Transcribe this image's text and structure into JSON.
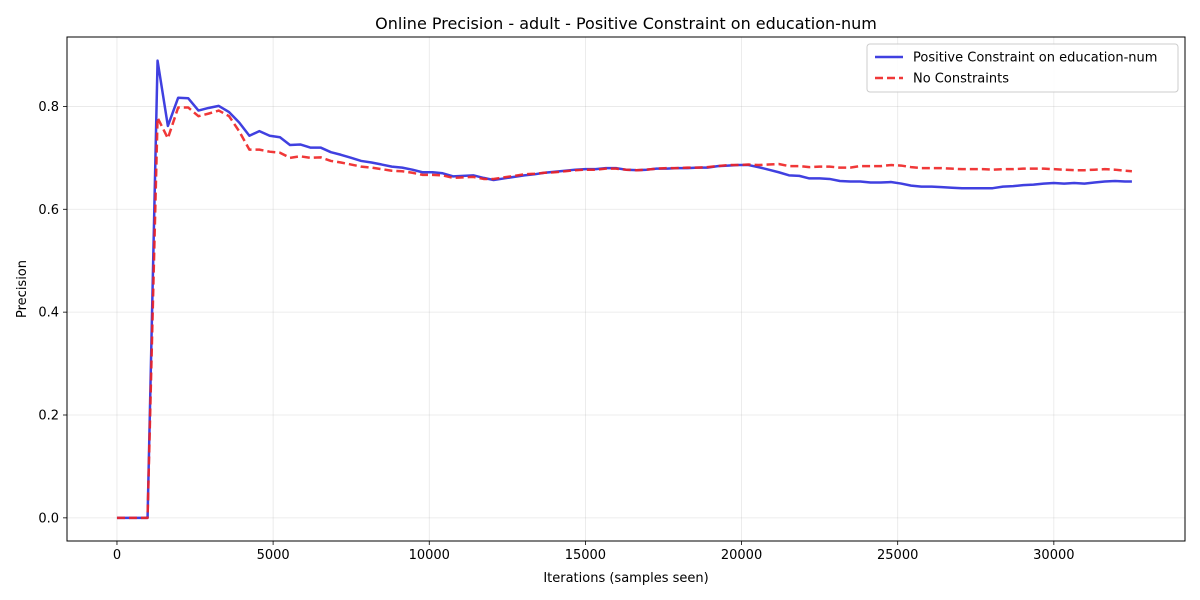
{
  "chart_data": {
    "type": "line",
    "title": "Online Precision - adult - Positive Constraint on education-num",
    "xlabel": "Iterations (samples seen)",
    "ylabel": "Precision",
    "xlim": [
      -1600,
      34200
    ],
    "ylim": [
      -0.045,
      0.935
    ],
    "xticks": [
      0,
      5000,
      10000,
      15000,
      20000,
      25000,
      30000
    ],
    "yticks": [
      0.0,
      0.2,
      0.4,
      0.6,
      0.8
    ],
    "xtick_labels": [
      "0",
      "5000",
      "10000",
      "15000",
      "20000",
      "25000",
      "30000"
    ],
    "ytick_labels": [
      "0.0",
      "0.2",
      "0.4",
      "0.6",
      "0.8"
    ],
    "grid": true,
    "legend_position": "top-right",
    "series": [
      {
        "name": "Positive Constraint on education-num",
        "color": "#2b2bdd",
        "style": "solid",
        "x": [
          0,
          330,
          650,
          980,
          1300,
          1630,
          1960,
          2280,
          2610,
          2930,
          3260,
          3590,
          3910,
          4240,
          4560,
          4890,
          5220,
          5540,
          5870,
          6190,
          6520,
          6850,
          7170,
          7500,
          7820,
          8150,
          8480,
          8800,
          9130,
          9460,
          9780,
          10110,
          10430,
          10760,
          11090,
          11410,
          11740,
          12060,
          12390,
          12720,
          13040,
          13370,
          13690,
          14020,
          14350,
          14670,
          15000,
          15330,
          15650,
          15980,
          16300,
          16630,
          16960,
          17280,
          17610,
          17930,
          18260,
          18590,
          18910,
          19240,
          19560,
          19890,
          20220,
          20540,
          20870,
          21190,
          21520,
          21850,
          22170,
          22500,
          22820,
          23150,
          23480,
          23800,
          24130,
          24460,
          24780,
          25110,
          25430,
          25760,
          26090,
          26410,
          26740,
          27060,
          27390,
          27720,
          28040,
          28370,
          28700,
          29020,
          29350,
          29670,
          30000,
          30330,
          30650,
          30980,
          31300,
          31630,
          31960,
          32280,
          32500
        ],
        "y": [
          0.0,
          0.0,
          0.0,
          0.0,
          0.889,
          0.762,
          0.817,
          0.816,
          0.792,
          0.797,
          0.801,
          0.789,
          0.769,
          0.743,
          0.752,
          0.743,
          0.74,
          0.725,
          0.726,
          0.72,
          0.72,
          0.711,
          0.706,
          0.7,
          0.694,
          0.691,
          0.687,
          0.683,
          0.681,
          0.677,
          0.672,
          0.672,
          0.67,
          0.664,
          0.665,
          0.666,
          0.661,
          0.657,
          0.66,
          0.663,
          0.666,
          0.668,
          0.671,
          0.673,
          0.675,
          0.677,
          0.678,
          0.678,
          0.68,
          0.68,
          0.677,
          0.676,
          0.677,
          0.679,
          0.679,
          0.68,
          0.68,
          0.681,
          0.681,
          0.684,
          0.685,
          0.686,
          0.686,
          0.682,
          0.677,
          0.672,
          0.666,
          0.665,
          0.66,
          0.66,
          0.659,
          0.655,
          0.654,
          0.654,
          0.652,
          0.652,
          0.653,
          0.65,
          0.646,
          0.644,
          0.644,
          0.643,
          0.642,
          0.641,
          0.641,
          0.641,
          0.641,
          0.644,
          0.645,
          0.647,
          0.648,
          0.65,
          0.651,
          0.65,
          0.651,
          0.65,
          0.652,
          0.654,
          0.655,
          0.654,
          0.654
        ]
      },
      {
        "name": "No Constraints",
        "color": "#ee2222",
        "style": "dashed",
        "x": [
          0,
          330,
          650,
          980,
          1300,
          1630,
          1960,
          2280,
          2610,
          2930,
          3260,
          3590,
          3910,
          4240,
          4560,
          4890,
          5220,
          5540,
          5870,
          6190,
          6520,
          6850,
          7170,
          7500,
          7820,
          8150,
          8480,
          8800,
          9130,
          9460,
          9780,
          10110,
          10430,
          10760,
          11090,
          11410,
          11740,
          12060,
          12390,
          12720,
          13040,
          13370,
          13690,
          14020,
          14350,
          14670,
          15000,
          15330,
          15650,
          15980,
          16300,
          16630,
          16960,
          17280,
          17610,
          17930,
          18260,
          18590,
          18910,
          19240,
          19560,
          19890,
          20220,
          20540,
          20870,
          21190,
          21520,
          21850,
          22170,
          22500,
          22820,
          23150,
          23480,
          23800,
          24130,
          24460,
          24780,
          25110,
          25430,
          25760,
          26090,
          26410,
          26740,
          27060,
          27390,
          27720,
          28040,
          28370,
          28700,
          29020,
          29350,
          29670,
          30000,
          30330,
          30650,
          30980,
          31300,
          31630,
          31960,
          32280,
          32500
        ],
        "y": [
          0.0,
          0.0,
          0.0,
          0.0,
          0.778,
          0.738,
          0.798,
          0.798,
          0.781,
          0.786,
          0.792,
          0.781,
          0.752,
          0.716,
          0.716,
          0.712,
          0.71,
          0.7,
          0.703,
          0.7,
          0.701,
          0.694,
          0.691,
          0.687,
          0.683,
          0.681,
          0.678,
          0.675,
          0.674,
          0.671,
          0.667,
          0.667,
          0.666,
          0.661,
          0.662,
          0.663,
          0.659,
          0.659,
          0.662,
          0.665,
          0.668,
          0.669,
          0.671,
          0.672,
          0.674,
          0.676,
          0.677,
          0.677,
          0.679,
          0.679,
          0.677,
          0.676,
          0.677,
          0.679,
          0.68,
          0.68,
          0.681,
          0.681,
          0.682,
          0.684,
          0.686,
          0.686,
          0.687,
          0.686,
          0.687,
          0.688,
          0.684,
          0.684,
          0.682,
          0.683,
          0.683,
          0.681,
          0.681,
          0.684,
          0.684,
          0.684,
          0.686,
          0.685,
          0.682,
          0.68,
          0.68,
          0.68,
          0.679,
          0.678,
          0.678,
          0.678,
          0.677,
          0.678,
          0.678,
          0.679,
          0.679,
          0.679,
          0.678,
          0.677,
          0.676,
          0.676,
          0.677,
          0.678,
          0.677,
          0.675,
          0.674
        ]
      }
    ]
  }
}
